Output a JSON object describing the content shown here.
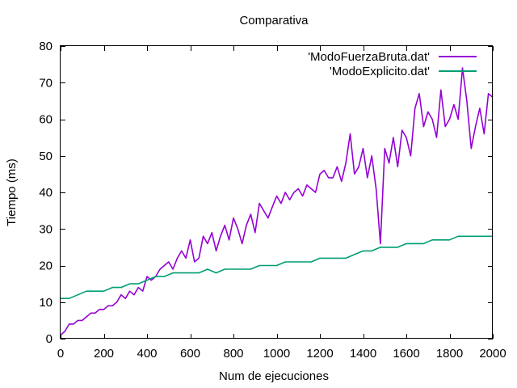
{
  "chart_data": {
    "type": "line",
    "title": "Comparativa",
    "xlabel": "Num de ejecuciones",
    "ylabel": "Tiempo (ms)",
    "xlim": [
      0,
      2000
    ],
    "ylim": [
      0,
      80
    ],
    "x_ticks": [
      0,
      200,
      400,
      600,
      800,
      1000,
      1200,
      1400,
      1600,
      1800,
      2000
    ],
    "x_tick_labels": [
      "0",
      "200",
      "400",
      "600",
      "800",
      "1000",
      "1200",
      "1400",
      "1600",
      "1800",
      "2000"
    ],
    "y_ticks": [
      0,
      10,
      20,
      30,
      40,
      50,
      60,
      70,
      80
    ],
    "y_tick_labels": [
      "0",
      "10",
      "20",
      "30",
      "40",
      "50",
      "60",
      "70",
      "80"
    ],
    "grid": false,
    "legend_position": "top-right",
    "series": [
      {
        "name": "'ModoFuerzaBruta.dat'",
        "color": "#9400d3",
        "x": [
          0,
          20,
          40,
          60,
          80,
          100,
          120,
          140,
          160,
          180,
          200,
          220,
          240,
          260,
          280,
          300,
          320,
          340,
          360,
          380,
          400,
          420,
          440,
          460,
          480,
          500,
          520,
          540,
          560,
          580,
          600,
          620,
          640,
          660,
          680,
          700,
          720,
          740,
          760,
          780,
          800,
          820,
          840,
          860,
          880,
          900,
          920,
          940,
          960,
          980,
          1000,
          1020,
          1040,
          1060,
          1080,
          1100,
          1120,
          1140,
          1160,
          1180,
          1200,
          1220,
          1240,
          1260,
          1280,
          1300,
          1320,
          1340,
          1360,
          1380,
          1400,
          1420,
          1440,
          1460,
          1480,
          1500,
          1520,
          1540,
          1560,
          1580,
          1600,
          1620,
          1640,
          1660,
          1680,
          1700,
          1720,
          1740,
          1760,
          1780,
          1800,
          1820,
          1840,
          1860,
          1880,
          1900,
          1920,
          1940,
          1960,
          1980,
          2000
        ],
        "values": [
          1,
          2,
          4,
          4,
          5,
          5,
          6,
          7,
          7,
          8,
          8,
          9,
          9,
          10,
          12,
          11,
          13,
          12,
          14,
          13,
          17,
          16,
          17,
          19,
          20,
          21,
          19,
          22,
          24,
          22,
          27,
          21,
          22,
          28,
          26,
          29,
          24,
          28,
          31,
          27,
          33,
          30,
          26,
          31,
          34,
          29,
          37,
          35,
          33,
          36,
          39,
          37,
          40,
          38,
          40,
          41,
          39,
          42,
          41,
          40,
          45,
          46,
          44,
          44,
          47,
          43,
          48,
          56,
          45,
          47,
          52,
          44,
          50,
          41,
          26,
          52,
          48,
          55,
          47,
          57,
          55,
          50,
          63,
          67,
          58,
          62,
          60,
          55,
          68,
          58,
          60,
          64,
          60,
          74,
          65,
          52,
          58,
          63,
          56,
          67,
          66
        ]
      },
      {
        "name": "'ModoExplicito.dat'",
        "color": "#009e73",
        "x": [
          0,
          40,
          80,
          120,
          160,
          200,
          240,
          280,
          320,
          360,
          400,
          440,
          480,
          520,
          560,
          600,
          640,
          680,
          720,
          760,
          800,
          840,
          880,
          920,
          960,
          1000,
          1040,
          1080,
          1120,
          1160,
          1200,
          1240,
          1280,
          1320,
          1360,
          1400,
          1440,
          1480,
          1520,
          1560,
          1600,
          1640,
          1680,
          1720,
          1760,
          1800,
          1840,
          1880,
          1920,
          1960,
          2000
        ],
        "values": [
          11,
          11,
          12,
          13,
          13,
          13,
          14,
          14,
          15,
          15,
          16,
          17,
          17,
          18,
          18,
          18,
          18,
          19,
          18,
          19,
          19,
          19,
          19,
          20,
          20,
          20,
          21,
          21,
          21,
          21,
          22,
          22,
          22,
          22,
          23,
          24,
          24,
          25,
          25,
          25,
          26,
          26,
          26,
          27,
          27,
          27,
          28,
          28,
          28,
          28,
          28
        ]
      }
    ]
  }
}
